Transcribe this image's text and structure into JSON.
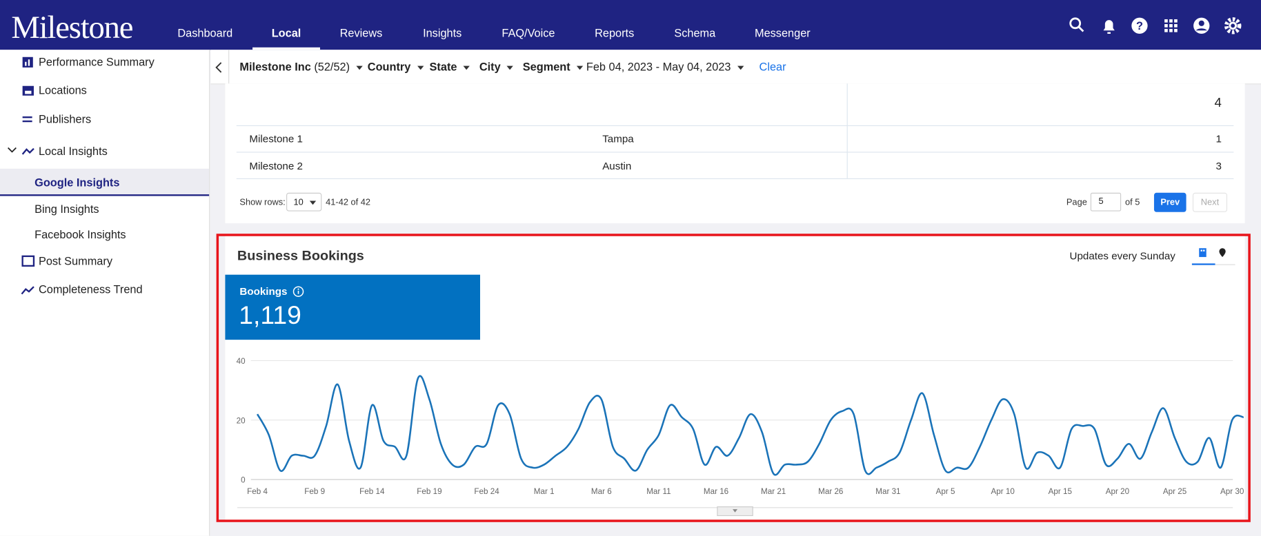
{
  "header": {
    "logo": "Milestone",
    "nav": [
      "Dashboard",
      "Local",
      "Reviews",
      "Insights",
      "FAQ/Voice",
      "Reports",
      "Schema",
      "Messenger"
    ]
  },
  "sidebar": [
    "Performance Summary",
    "Locations",
    "Publishers",
    "Local Insights",
    "Google Insights",
    "Bing Insights",
    "Facebook Insights",
    "Post Summary",
    "Completeness Trend"
  ],
  "filters": {
    "account": "Milestone Inc",
    "account_count": "(52/52)",
    "fields": [
      "Country",
      "State",
      "City",
      "Segment"
    ],
    "date_range": "Feb 04, 2023 - May 04, 2023",
    "clear": "Clear"
  },
  "table": {
    "top_value": 4,
    "rows": [
      [
        "Milestone 1",
        "Tampa",
        1
      ],
      [
        "Milestone 2",
        "Austin",
        3
      ]
    ]
  },
  "pagination": {
    "show_rows_label": "Show rows:",
    "rows_per_page": 10,
    "range": "41-42 of 42",
    "page_label": "Page",
    "page": 5,
    "of_label": "of 5",
    "prev": "Prev",
    "next": "Next"
  },
  "card": {
    "title": "Business Bookings",
    "updates": "Updates every Sunday",
    "kpi_label": "Bookings",
    "kpi_value": "1,119"
  },
  "chart_data": {
    "type": "line",
    "color": "#1a73b8",
    "ylim": [
      0,
      40
    ],
    "yticks": [
      0,
      20,
      40
    ],
    "grid": true,
    "categories": [
      "Feb 4",
      null,
      null,
      null,
      null,
      "Feb 9",
      null,
      null,
      null,
      null,
      "Feb 14",
      null,
      null,
      null,
      null,
      "Feb 19",
      null,
      null,
      null,
      null,
      "Feb 24",
      null,
      null,
      null,
      null,
      "Mar 1",
      null,
      null,
      null,
      null,
      "Mar 6",
      null,
      null,
      null,
      null,
      "Mar 11",
      null,
      null,
      null,
      null,
      "Mar 16",
      null,
      null,
      null,
      null,
      "Mar 21",
      null,
      null,
      null,
      null,
      "Mar 26",
      null,
      null,
      null,
      null,
      "Mar 31",
      null,
      null,
      null,
      null,
      "Apr 5",
      null,
      null,
      null,
      null,
      "Apr 10",
      null,
      null,
      null,
      null,
      "Apr 15",
      null,
      null,
      null,
      null,
      "Apr 20",
      null,
      null,
      null,
      null,
      "Apr 25",
      null,
      null,
      null,
      null,
      "Apr 30",
      null
    ],
    "values": [
      22,
      15,
      3,
      8,
      8,
      8,
      18,
      32,
      13,
      4,
      25,
      13,
      11,
      8,
      34,
      27,
      12,
      5,
      5,
      11,
      12,
      25,
      22,
      7,
      4,
      5,
      8,
      11,
      17,
      26,
      27,
      11,
      7,
      3,
      10,
      15,
      25,
      21,
      17,
      5,
      11,
      8,
      14,
      22,
      16,
      2,
      5,
      5,
      6,
      12,
      20,
      23,
      22,
      3,
      4,
      6,
      9,
      20,
      29,
      15,
      3,
      4,
      4,
      11,
      20,
      27,
      22,
      4,
      9,
      8,
      4,
      17,
      18,
      17,
      5,
      7,
      12,
      7,
      16,
      24,
      14,
      6,
      6,
      14,
      4,
      20,
      21
    ]
  }
}
